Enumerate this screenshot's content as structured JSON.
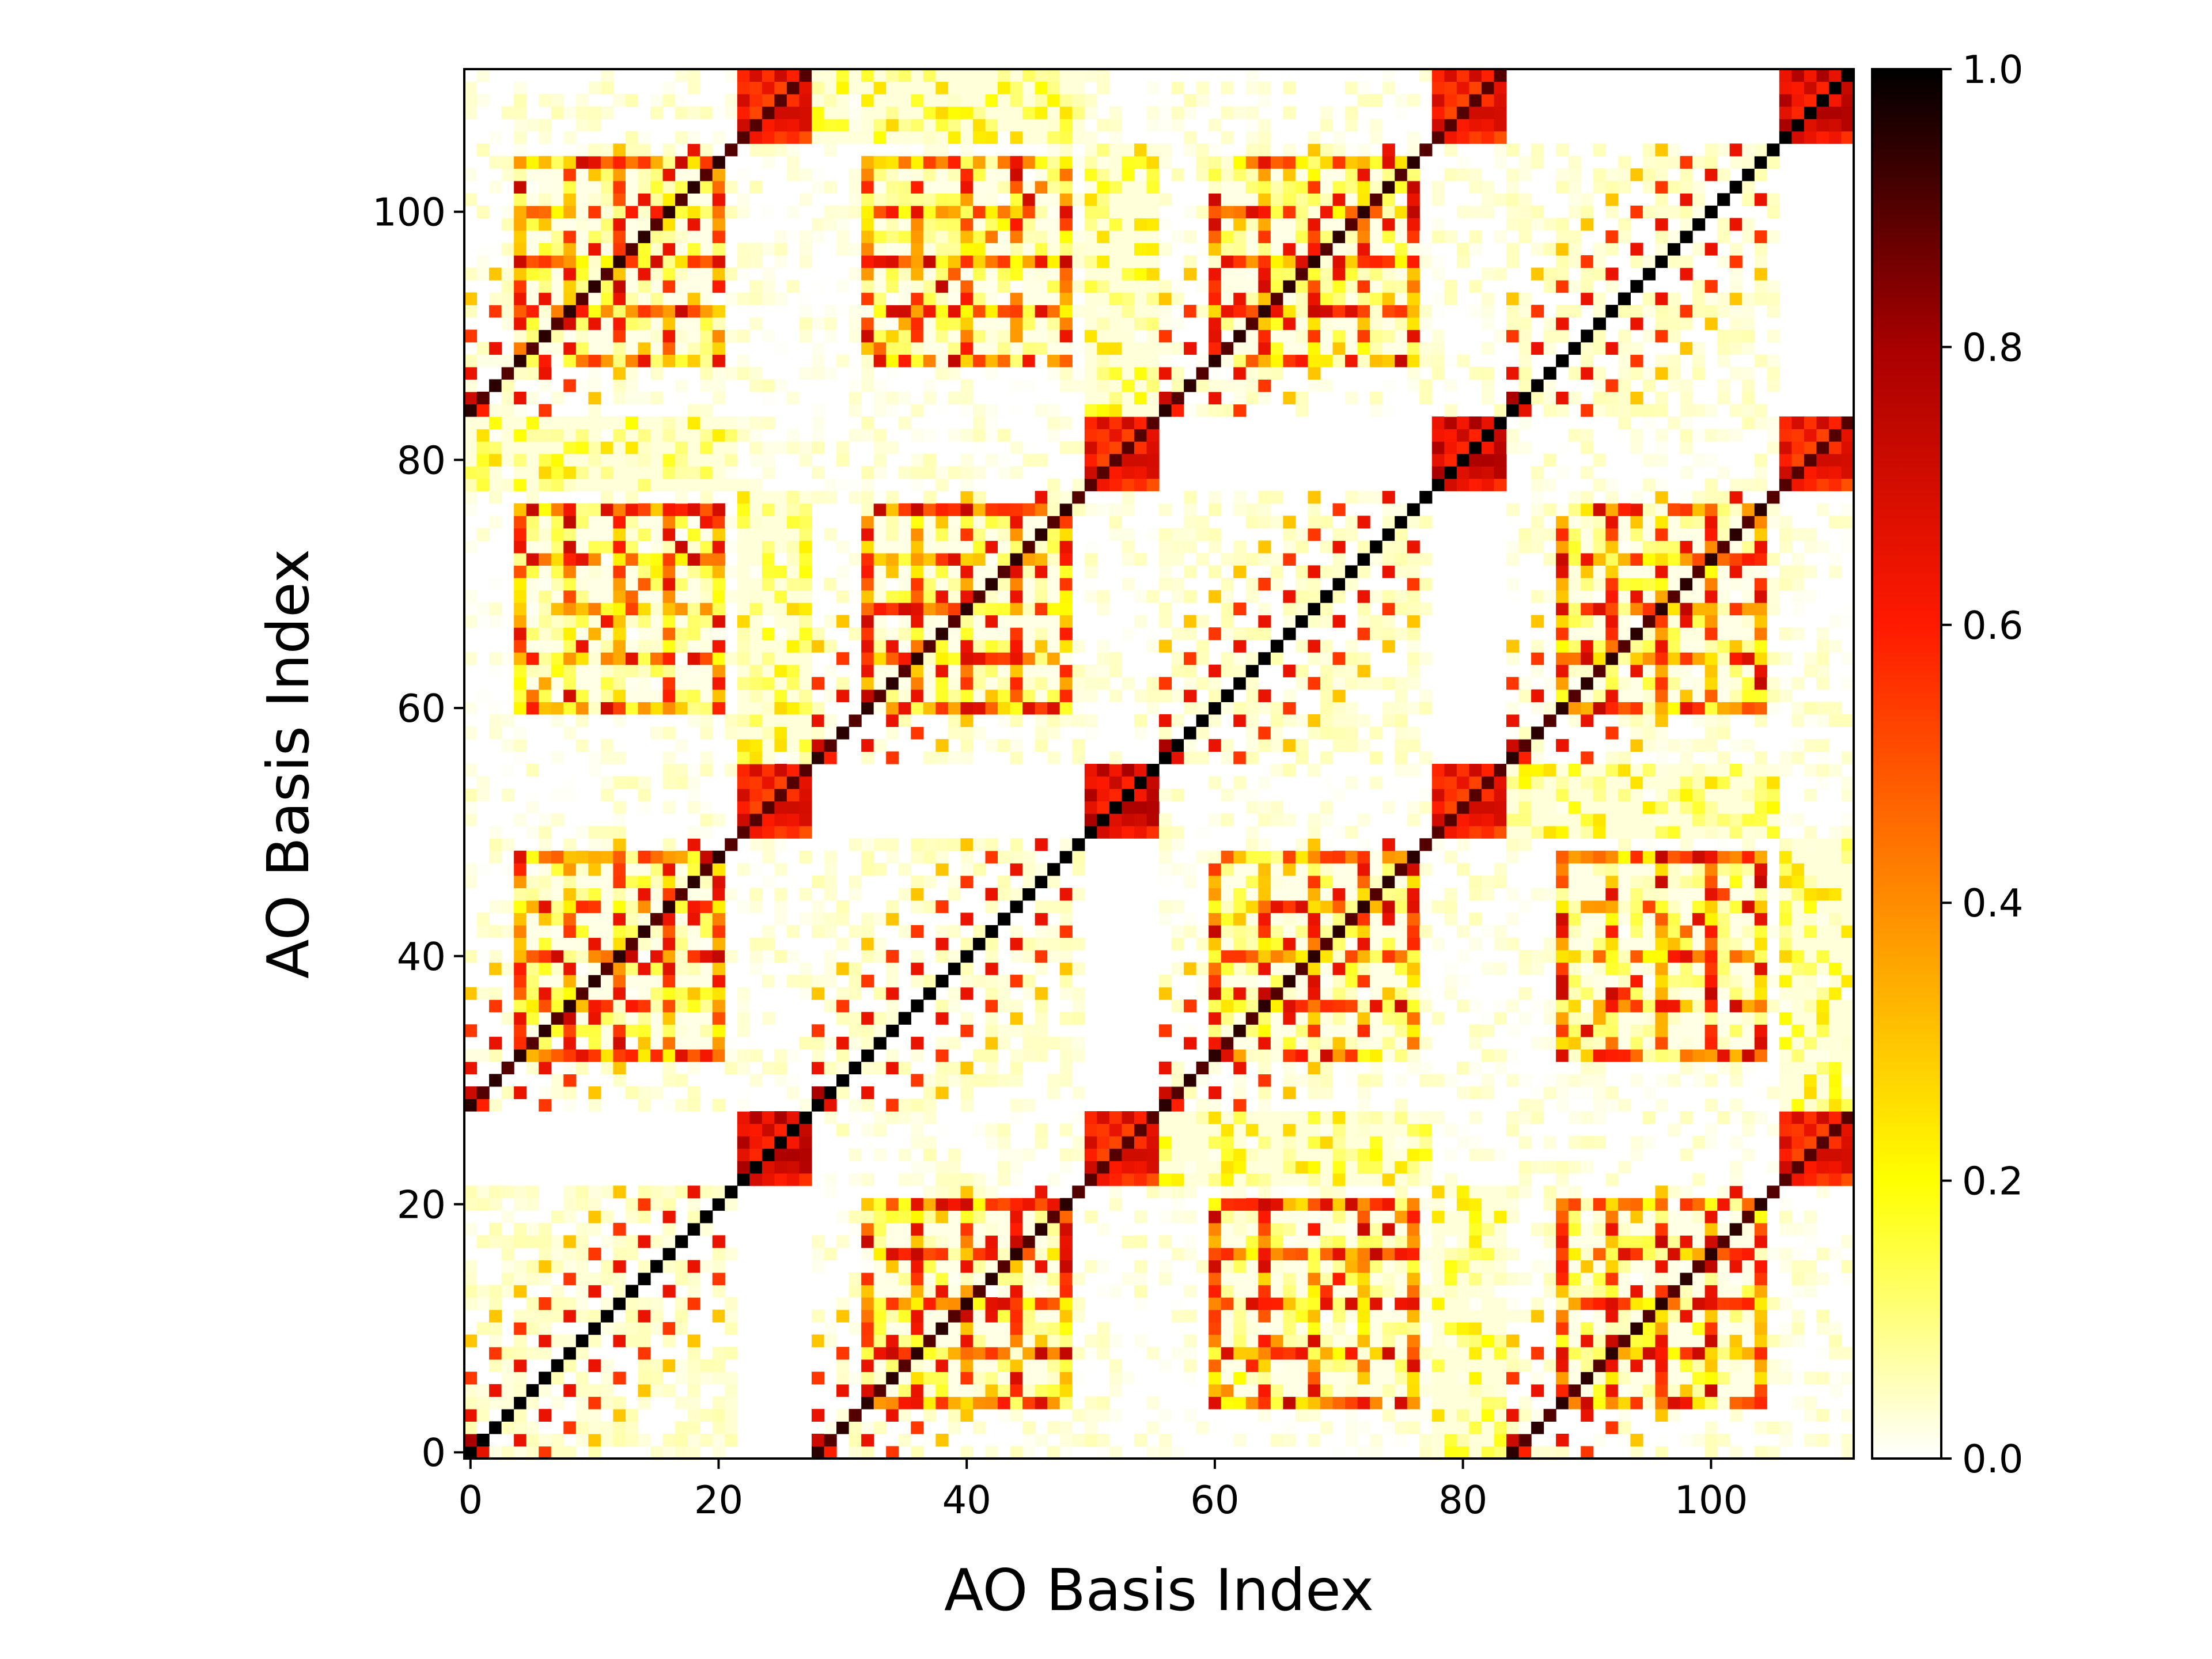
{
  "chart_data": {
    "type": "heatmap",
    "title": "",
    "xlabel": "AO Basis Index",
    "ylabel": "AO Basis Index",
    "n": 112,
    "origin": "lower",
    "xlim": [
      0,
      112
    ],
    "ylim": [
      0,
      112
    ],
    "xticks": [
      0,
      20,
      40,
      60,
      80,
      100
    ],
    "yticks": [
      0,
      20,
      40,
      60,
      80,
      100
    ],
    "colormap": "hot_r",
    "colorbar": {
      "range": [
        0.0,
        1.0
      ],
      "ticks": [
        "0.0",
        "0.2",
        "0.4",
        "0.6",
        "0.8",
        "1.0"
      ],
      "stops": [
        {
          "v": 0.0,
          "color": "#ffffff"
        },
        {
          "v": 0.1,
          "color": "#ffff80"
        },
        {
          "v": 0.2,
          "color": "#ffff00"
        },
        {
          "v": 0.4,
          "color": "#ff8c00"
        },
        {
          "v": 0.6,
          "color": "#ff1a00"
        },
        {
          "v": 0.8,
          "color": "#a80000"
        },
        {
          "v": 1.0,
          "color": "#000000"
        }
      ]
    },
    "structure": {
      "atom_period": 56,
      "shell_offset": 28,
      "diagonal_value": 1.0,
      "core_blocks": [
        {
          "start": 0,
          "size": 2,
          "value": 0.85
        },
        {
          "start": 22,
          "size": 6,
          "value": 0.8
        },
        {
          "start": 28,
          "size": 2,
          "value": 0.85
        },
        {
          "start": 50,
          "size": 6,
          "value": 0.8
        }
      ],
      "parallel_stripes": [
        {
          "offset": 3,
          "value": 0.65
        },
        {
          "offset": -3,
          "value": 0.65
        },
        {
          "offset": 6,
          "value": 0.55
        },
        {
          "offset": -6,
          "value": 0.55
        },
        {
          "offset": 9,
          "value": 0.3
        },
        {
          "offset": -9,
          "value": 0.3
        }
      ],
      "cross_block_peak": 0.75
    },
    "grid": false,
    "legend": "colorbar-right"
  }
}
